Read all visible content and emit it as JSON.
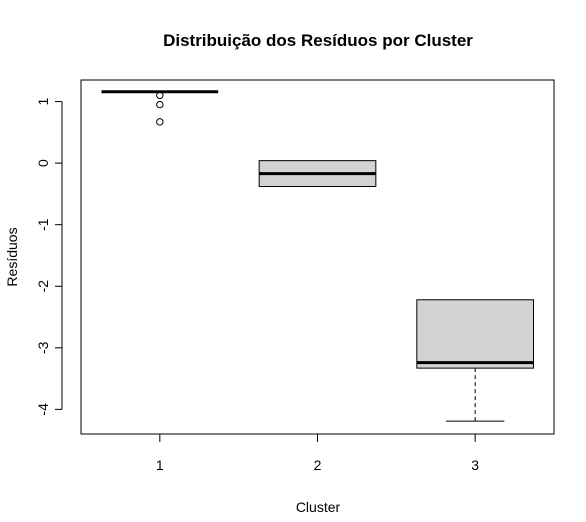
{
  "chart_data": {
    "type": "boxplot",
    "title": "Distribuição dos Resíduos por Cluster",
    "xlabel": "Cluster",
    "ylabel": "Resíduos",
    "categories": [
      "1",
      "2",
      "3"
    ],
    "ylim": [
      -4.4,
      1.35
    ],
    "yticks": [
      1,
      0,
      -1,
      -2,
      -3,
      -4
    ],
    "ytick_labels": [
      "1",
      "0",
      "-1",
      "-2",
      "-3",
      "-4"
    ],
    "grid": false,
    "box_fill": "#d3d3d3",
    "boxes": [
      {
        "category": "1",
        "whisker_low": 1.16,
        "q1": 1.16,
        "median": 1.16,
        "q3": 1.16,
        "whisker_high": 1.16,
        "outliers": [
          1.1,
          0.95,
          0.67
        ]
      },
      {
        "category": "2",
        "whisker_low": -0.38,
        "q1": -0.38,
        "median": -0.17,
        "q3": 0.04,
        "whisker_high": 0.04,
        "outliers": []
      },
      {
        "category": "3",
        "whisker_low": -4.19,
        "q1": -3.33,
        "median": -3.24,
        "q3": -2.22,
        "whisker_high": -2.22,
        "outliers": []
      }
    ]
  }
}
